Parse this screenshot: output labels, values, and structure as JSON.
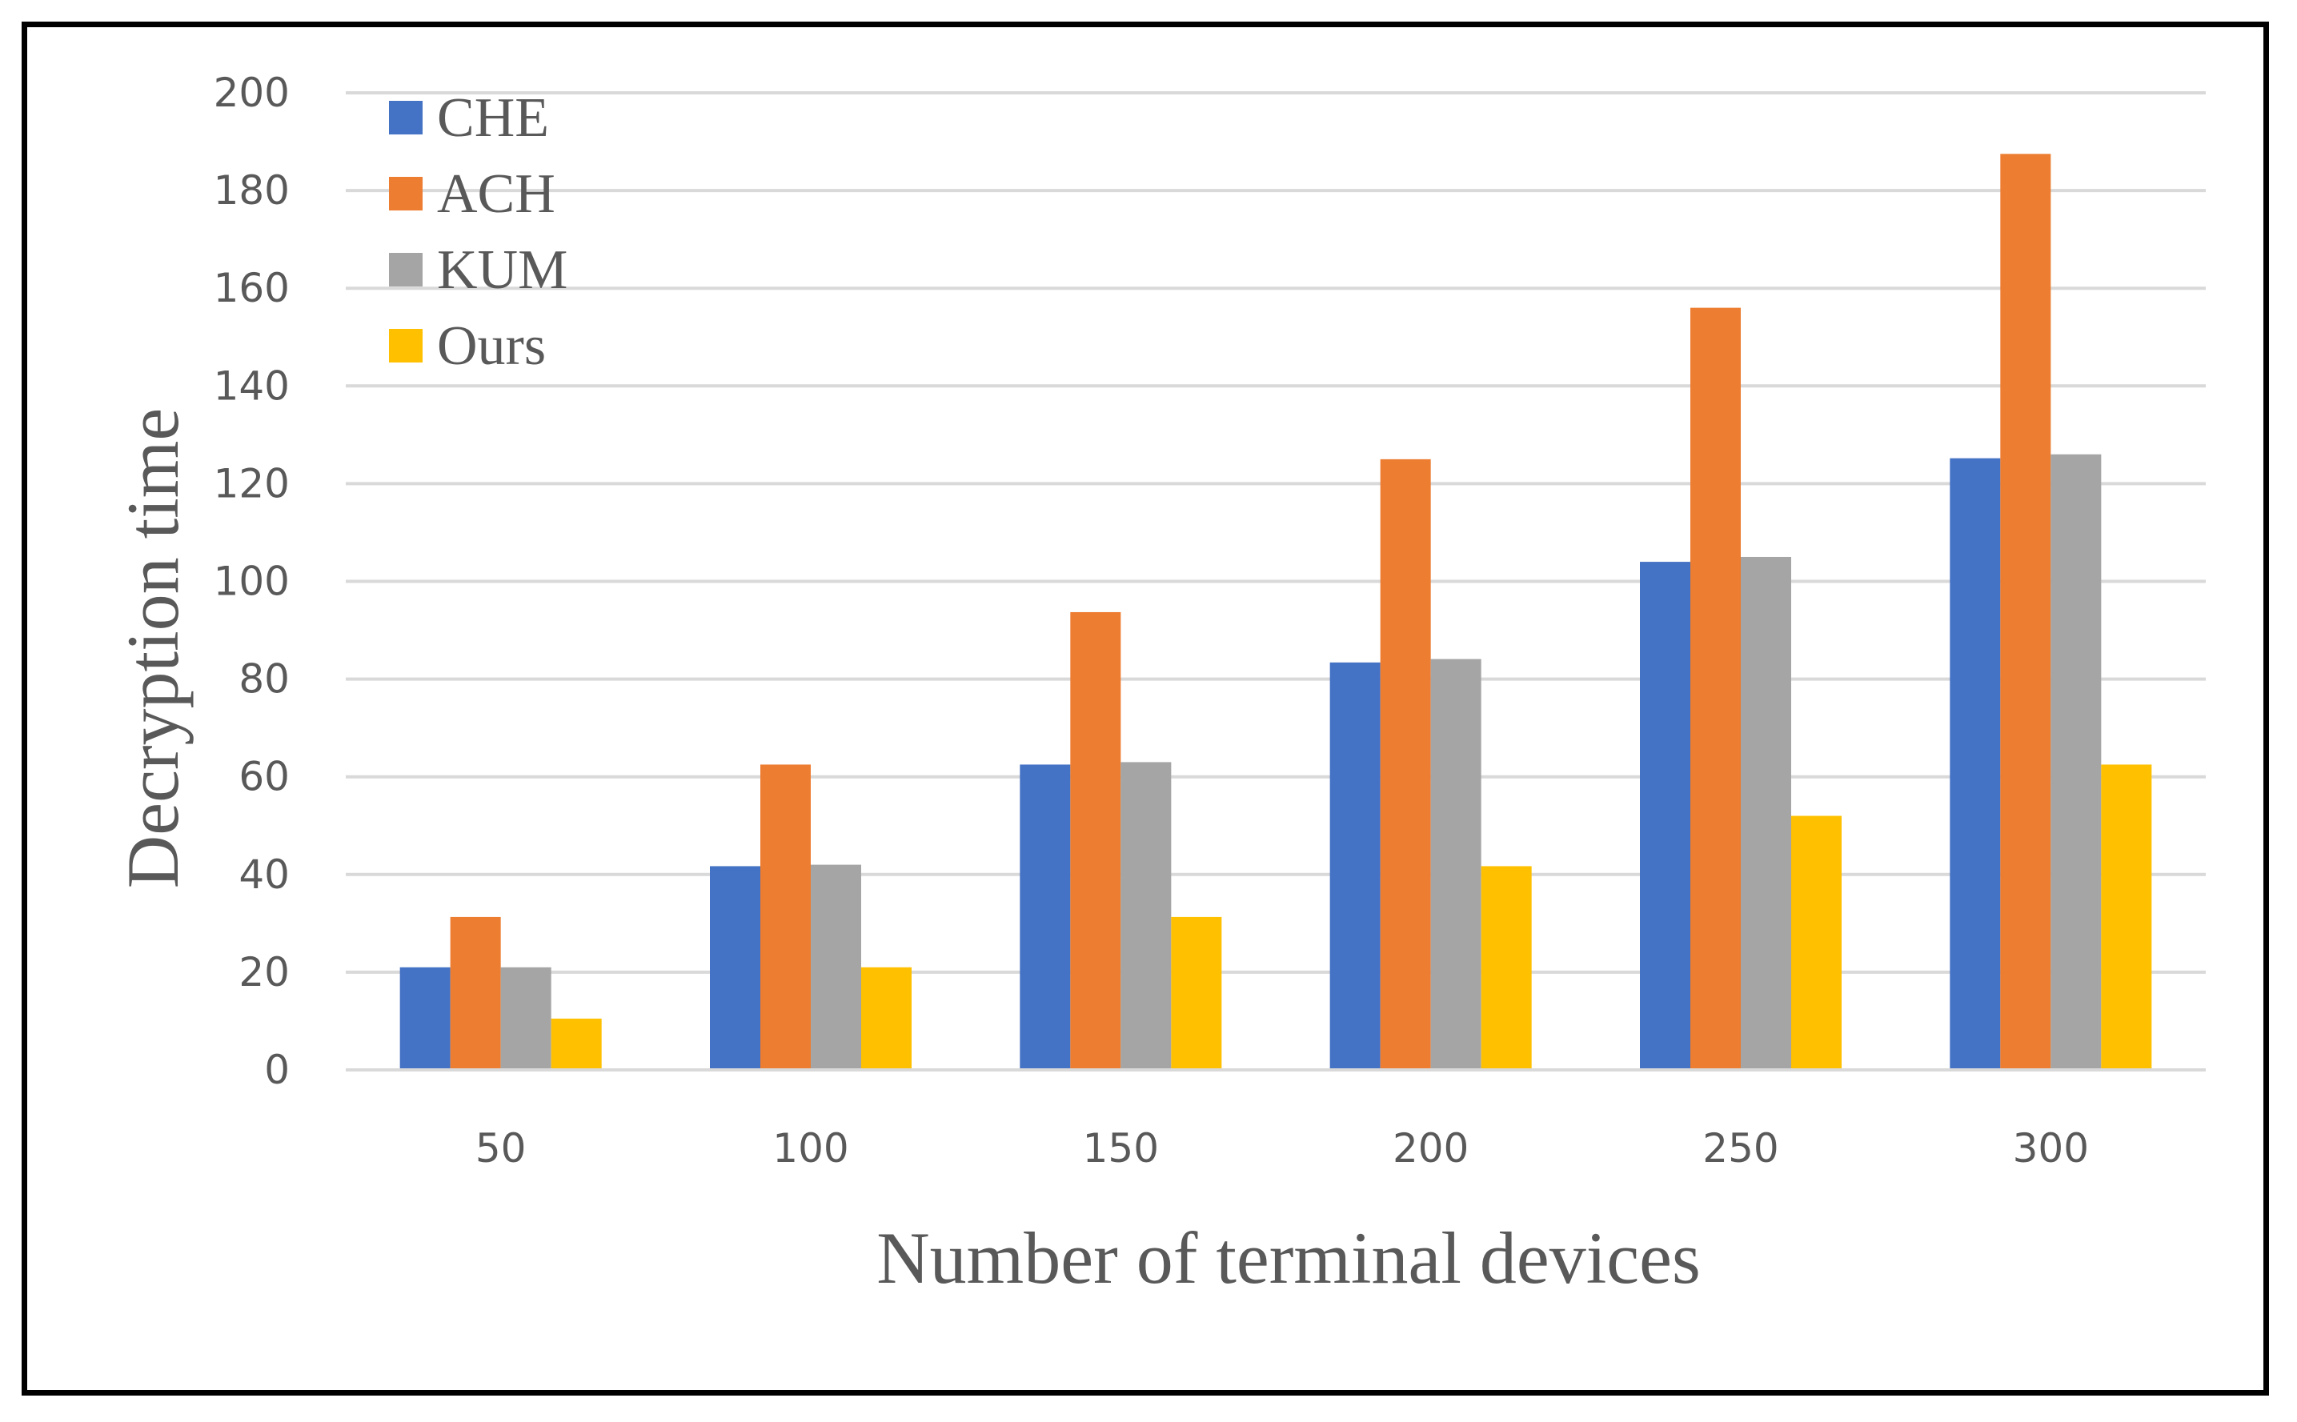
{
  "chart_data": {
    "type": "bar",
    "categories": [
      "50",
      "100",
      "150",
      "200",
      "250",
      "300"
    ],
    "series": [
      {
        "name": "CHE",
        "color": "#4472C4",
        "values": [
          21,
          41.7,
          62.5,
          83.4,
          104,
          125.2
        ]
      },
      {
        "name": "ACH",
        "color": "#ED7D31",
        "values": [
          31.3,
          62.5,
          93.7,
          125,
          156,
          187.5
        ]
      },
      {
        "name": "KUM",
        "color": "#A5A5A5",
        "values": [
          21,
          42,
          63,
          84.1,
          105,
          126
        ]
      },
      {
        "name": "Ours",
        "color": "#FFC000",
        "values": [
          10.5,
          21,
          31.3,
          41.7,
          52,
          62.5
        ]
      }
    ],
    "xlabel": "Number of terminal devices",
    "ylabel": "Decryption time",
    "ylim": [
      0,
      200
    ],
    "yticks": [
      "0",
      "20",
      "40",
      "60",
      "80",
      "100",
      "120",
      "140",
      "160",
      "180",
      "200"
    ],
    "grid": true,
    "legend_position": "top-left"
  }
}
